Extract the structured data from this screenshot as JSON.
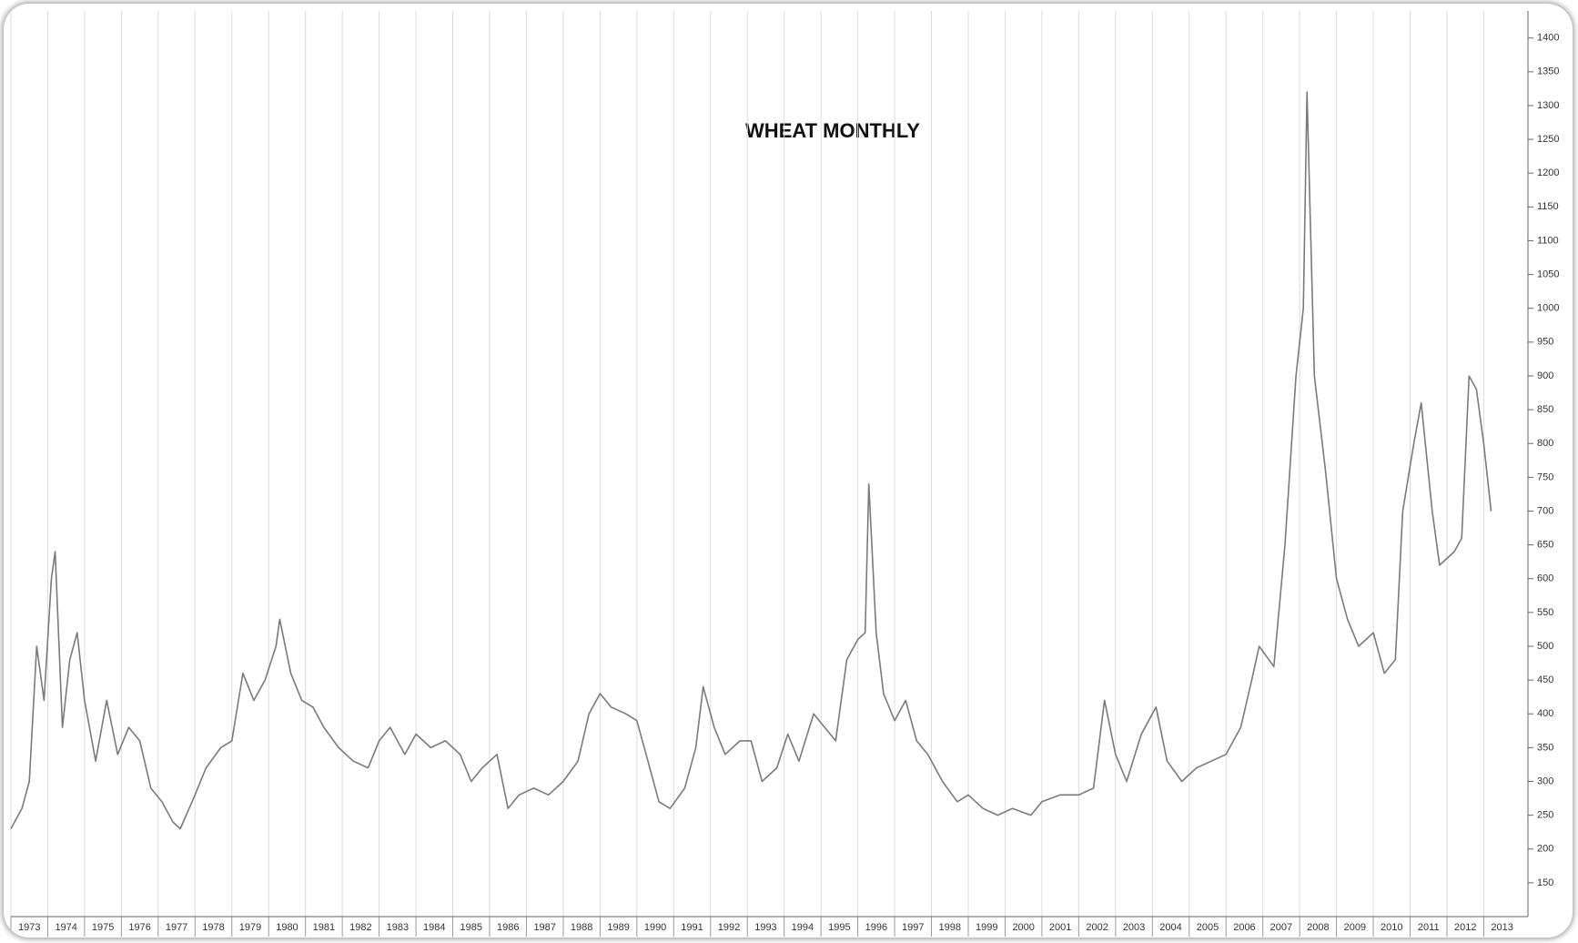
{
  "chart_data": {
    "type": "line",
    "title": "WHEAT MONTHLY",
    "color": "#7a7a7a",
    "grid": true,
    "x": [
      1973.0,
      1973.3,
      1973.5,
      1973.7,
      1973.9,
      1974.1,
      1974.2,
      1974.4,
      1974.6,
      1974.8,
      1975.0,
      1975.3,
      1975.6,
      1975.9,
      1976.2,
      1976.5,
      1976.8,
      1977.1,
      1977.4,
      1977.6,
      1978.0,
      1978.3,
      1978.7,
      1979.0,
      1979.3,
      1979.6,
      1979.9,
      1980.2,
      1980.3,
      1980.6,
      1980.9,
      1981.2,
      1981.5,
      1981.9,
      1982.3,
      1982.7,
      1983.0,
      1983.3,
      1983.7,
      1984.0,
      1984.4,
      1984.8,
      1985.2,
      1985.5,
      1985.8,
      1986.2,
      1986.5,
      1986.8,
      1987.2,
      1987.6,
      1988.0,
      1988.4,
      1988.7,
      1989.0,
      1989.3,
      1989.7,
      1990.0,
      1990.3,
      1990.6,
      1990.9,
      1991.3,
      1991.6,
      1991.8,
      1992.1,
      1992.4,
      1992.8,
      1993.1,
      1993.4,
      1993.8,
      1994.1,
      1994.4,
      1994.8,
      1995.1,
      1995.4,
      1995.7,
      1996.0,
      1996.2,
      1996.3,
      1996.5,
      1996.7,
      1997.0,
      1997.3,
      1997.6,
      1997.9,
      1998.3,
      1998.7,
      1999.0,
      1999.4,
      1999.8,
      2000.2,
      2000.7,
      2001.0,
      2001.5,
      2002.0,
      2002.4,
      2002.7,
      2003.0,
      2003.3,
      2003.7,
      2004.1,
      2004.4,
      2004.8,
      2005.2,
      2005.6,
      2006.0,
      2006.4,
      2006.7,
      2006.9,
      2007.3,
      2007.6,
      2007.9,
      2008.1,
      2008.2,
      2008.4,
      2008.7,
      2009.0,
      2009.3,
      2009.6,
      2010.0,
      2010.3,
      2010.6,
      2010.8,
      2011.1,
      2011.3,
      2011.6,
      2011.8,
      2012.2,
      2012.4,
      2012.6,
      2012.8,
      2013.0,
      2013.2
    ],
    "values": [
      230,
      260,
      300,
      500,
      420,
      600,
      640,
      380,
      480,
      520,
      420,
      330,
      420,
      340,
      380,
      360,
      290,
      270,
      240,
      230,
      280,
      320,
      350,
      360,
      460,
      420,
      450,
      500,
      540,
      460,
      420,
      410,
      380,
      350,
      330,
      320,
      360,
      380,
      340,
      370,
      350,
      360,
      340,
      300,
      320,
      340,
      260,
      280,
      290,
      280,
      300,
      330,
      400,
      430,
      410,
      400,
      390,
      330,
      270,
      260,
      290,
      350,
      440,
      380,
      340,
      360,
      360,
      300,
      320,
      370,
      330,
      400,
      380,
      360,
      480,
      510,
      520,
      740,
      520,
      430,
      390,
      420,
      360,
      340,
      300,
      270,
      280,
      260,
      250,
      260,
      250,
      270,
      280,
      280,
      290,
      420,
      340,
      300,
      370,
      410,
      330,
      300,
      320,
      330,
      340,
      380,
      450,
      500,
      470,
      650,
      900,
      1000,
      1320,
      900,
      760,
      600,
      540,
      500,
      520,
      460,
      480,
      700,
      800,
      860,
      700,
      620,
      640,
      660,
      900,
      880,
      800,
      700
    ],
    "xlim": [
      1973,
      2014.2
    ],
    "xticks": [
      1973,
      1974,
      1975,
      1976,
      1977,
      1978,
      1979,
      1980,
      1981,
      1982,
      1983,
      1984,
      1985,
      1986,
      1987,
      1988,
      1989,
      1990,
      1991,
      1992,
      1993,
      1994,
      1995,
      1996,
      1997,
      1998,
      1999,
      2000,
      2001,
      2002,
      2003,
      2004,
      2005,
      2006,
      2007,
      2008,
      2009,
      2010,
      2011,
      2012,
      2013
    ],
    "ylim": [
      100,
      1440
    ],
    "yticks": [
      150,
      200,
      250,
      300,
      350,
      400,
      450,
      500,
      550,
      600,
      650,
      700,
      750,
      800,
      850,
      900,
      950,
      1000,
      1050,
      1100,
      1150,
      1200,
      1250,
      1300,
      1350,
      1400
    ]
  }
}
